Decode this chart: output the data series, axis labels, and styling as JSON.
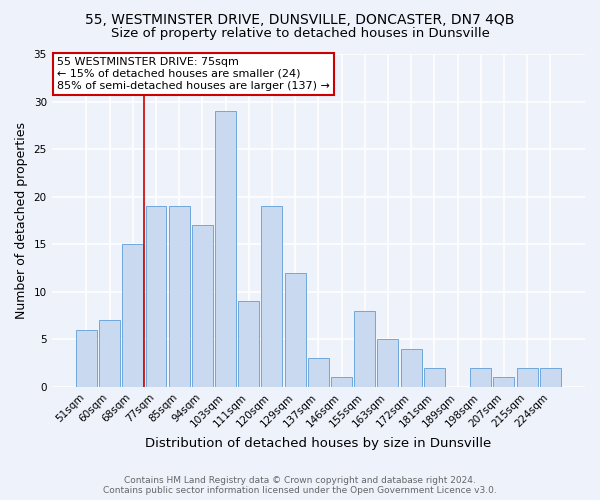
{
  "title": "55, WESTMINSTER DRIVE, DUNSVILLE, DONCASTER, DN7 4QB",
  "subtitle": "Size of property relative to detached houses in Dunsville",
  "xlabel": "Distribution of detached houses by size in Dunsville",
  "ylabel": "Number of detached properties",
  "categories": [
    "51sqm",
    "60sqm",
    "68sqm",
    "77sqm",
    "85sqm",
    "94sqm",
    "103sqm",
    "111sqm",
    "120sqm",
    "129sqm",
    "137sqm",
    "146sqm",
    "155sqm",
    "163sqm",
    "172sqm",
    "181sqm",
    "189sqm",
    "198sqm",
    "207sqm",
    "215sqm",
    "224sqm"
  ],
  "values": [
    6,
    7,
    15,
    19,
    19,
    17,
    29,
    9,
    19,
    12,
    3,
    1,
    8,
    5,
    4,
    2,
    0,
    2,
    1,
    2,
    2
  ],
  "bar_color": "#c8d9f0",
  "bar_edge_color": "#6fa8dc",
  "red_line_x": 2.5,
  "ylim": [
    0,
    35
  ],
  "yticks": [
    0,
    5,
    10,
    15,
    20,
    25,
    30,
    35
  ],
  "annotation_title": "55 WESTMINSTER DRIVE: 75sqm",
  "annotation_line1": "← 15% of detached houses are smaller (24)",
  "annotation_line2": "85% of semi-detached houses are larger (137) →",
  "annotation_box_color": "#ffffff",
  "annotation_border_color": "#cc0000",
  "footer_line1": "Contains HM Land Registry data © Crown copyright and database right 2024.",
  "footer_line2": "Contains public sector information licensed under the Open Government Licence v3.0.",
  "background_color": "#eef2fb",
  "grid_color": "#ffffff",
  "title_fontsize": 10,
  "subtitle_fontsize": 9.5,
  "xlabel_fontsize": 9.5,
  "ylabel_fontsize": 9,
  "tick_fontsize": 7.5,
  "annotation_fontsize": 8,
  "footer_fontsize": 6.5,
  "red_line_color": "#cc0000"
}
